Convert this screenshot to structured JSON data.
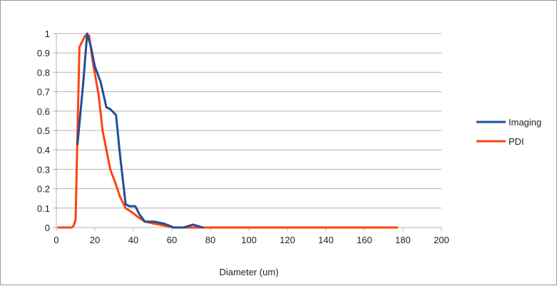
{
  "chart_data": {
    "type": "line",
    "title": "",
    "xlabel": "Diameter (um)",
    "ylabel": "",
    "xlim": [
      0,
      200
    ],
    "ylim": [
      0,
      1
    ],
    "xticks": [
      0,
      20,
      40,
      60,
      80,
      100,
      120,
      140,
      160,
      180,
      200
    ],
    "yticks": [
      0,
      0.1,
      0.2,
      0.3,
      0.4,
      0.5,
      0.6,
      0.7,
      0.8,
      0.9,
      1
    ],
    "xtick_labels": [
      "0",
      "20",
      "40",
      "60",
      "80",
      "100",
      "120",
      "140",
      "160",
      "180",
      "200"
    ],
    "ytick_labels": [
      "0",
      "0.1",
      "0.2",
      "0.3",
      "0.4",
      "0.5",
      "0.6",
      "0.7",
      "0.8",
      "0.9",
      "1"
    ],
    "grid": "horizontal",
    "legend_position": "right",
    "series": [
      {
        "name": "Imaging",
        "color": "#1f4e99",
        "points": [
          [
            11,
            0.43
          ],
          [
            14,
            0.75
          ],
          [
            16,
            1.0
          ],
          [
            18,
            0.93
          ],
          [
            20,
            0.83
          ],
          [
            23,
            0.75
          ],
          [
            26,
            0.62
          ],
          [
            28,
            0.61
          ],
          [
            31,
            0.58
          ],
          [
            33,
            0.38
          ],
          [
            36,
            0.12
          ],
          [
            38,
            0.11
          ],
          [
            41,
            0.11
          ],
          [
            43,
            0.07
          ],
          [
            46,
            0.03
          ],
          [
            51,
            0.03
          ],
          [
            56,
            0.02
          ],
          [
            61,
            0.0
          ],
          [
            66,
            0.0
          ],
          [
            71,
            0.015
          ],
          [
            76,
            0.0
          ]
        ]
      },
      {
        "name": "PDI",
        "color": "#ff420e",
        "points": [
          [
            1,
            0.0
          ],
          [
            5,
            0.0
          ],
          [
            8,
            0.0
          ],
          [
            9,
            0.01
          ],
          [
            10,
            0.04
          ],
          [
            11,
            0.5
          ],
          [
            12,
            0.93
          ],
          [
            15,
            0.99
          ],
          [
            17,
            0.99
          ],
          [
            19,
            0.85
          ],
          [
            22,
            0.68
          ],
          [
            24,
            0.5
          ],
          [
            26,
            0.4
          ],
          [
            28,
            0.3
          ],
          [
            31,
            0.22
          ],
          [
            33,
            0.16
          ],
          [
            36,
            0.1
          ],
          [
            39,
            0.08
          ],
          [
            43,
            0.05
          ],
          [
            46,
            0.03
          ],
          [
            51,
            0.02
          ],
          [
            56,
            0.01
          ],
          [
            61,
            0.0
          ],
          [
            71,
            0.0
          ],
          [
            100,
            0.0
          ],
          [
            140,
            0.0
          ],
          [
            177,
            0.0
          ]
        ]
      }
    ]
  }
}
